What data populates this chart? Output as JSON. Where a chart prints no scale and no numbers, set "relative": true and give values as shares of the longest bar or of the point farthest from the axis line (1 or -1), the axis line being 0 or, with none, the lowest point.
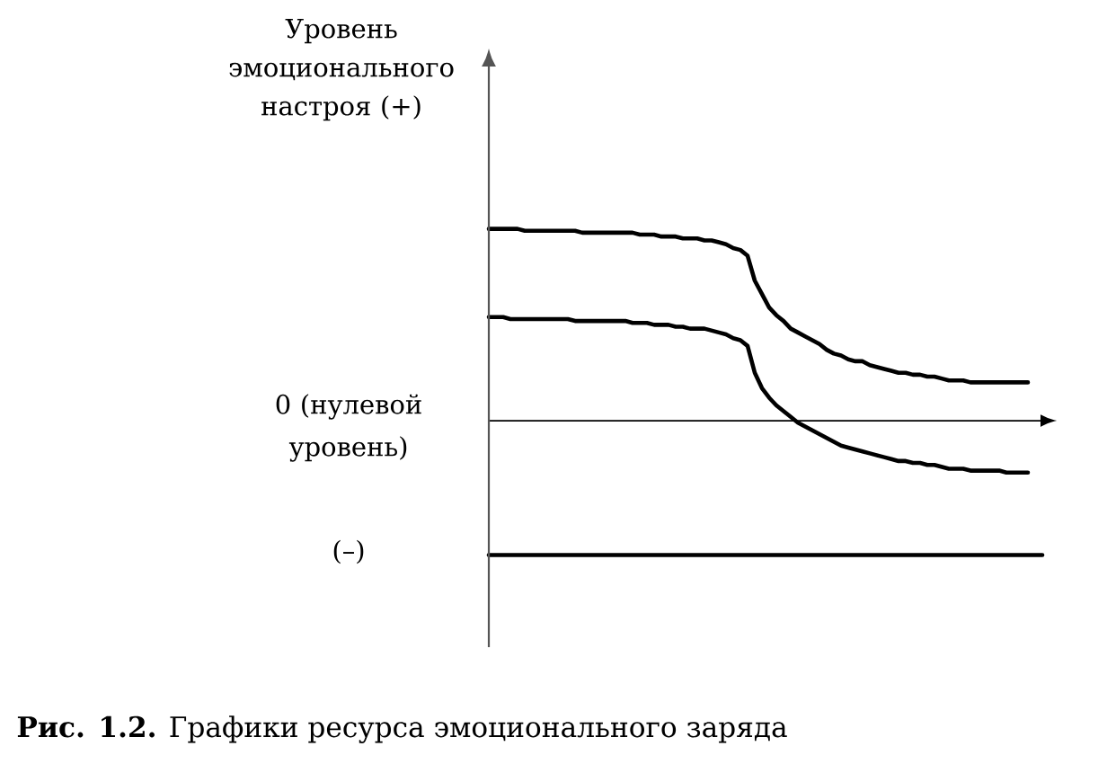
{
  "chart_data": {
    "type": "line",
    "relative": true,
    "marker": "none",
    "ylabel": "Уровень эмоционального настроя (+)",
    "categories": [
      null,
      null,
      null,
      null,
      null,
      null,
      null,
      null,
      null,
      null,
      null,
      null,
      null,
      null,
      null,
      null,
      null,
      null,
      null,
      null,
      null,
      null,
      null,
      null,
      null,
      null,
      null,
      null,
      null,
      null,
      null,
      null,
      null,
      null,
      null,
      null,
      null,
      null,
      null,
      null,
      null,
      null,
      null,
      null,
      null,
      null,
      null,
      null,
      null,
      null,
      null,
      null,
      null,
      null,
      null,
      null,
      null,
      null,
      null,
      null,
      null,
      null,
      null,
      null,
      null,
      null,
      null,
      null,
      null,
      null,
      null,
      null,
      null,
      null,
      null,
      null,
      null,
      null
    ],
    "series": [
      {
        "color": "#000000",
        "values": [
          1.0,
          1.0,
          1.0,
          1.0,
          1.0,
          0.99,
          0.99,
          0.99,
          0.99,
          0.99,
          0.99,
          0.99,
          0.99,
          0.98,
          0.98,
          0.98,
          0.98,
          0.98,
          0.98,
          0.98,
          0.98,
          0.97,
          0.97,
          0.97,
          0.96,
          0.96,
          0.96,
          0.95,
          0.95,
          0.95,
          0.94,
          0.94,
          0.93,
          0.92,
          0.9,
          0.89,
          0.86,
          0.73,
          0.66,
          0.59,
          0.55,
          0.52,
          0.48,
          0.46,
          0.44,
          0.42,
          0.4,
          0.37,
          0.35,
          0.34,
          0.32,
          0.31,
          0.31,
          0.29,
          0.28,
          0.27,
          0.26,
          0.25,
          0.25,
          0.24,
          0.24,
          0.23,
          0.23,
          0.22,
          0.21,
          0.21,
          0.21,
          0.2,
          0.2,
          0.2,
          0.2,
          0.2,
          0.2,
          0.2,
          0.2,
          0.2,
          null,
          null
        ]
      },
      {
        "color": "#000000",
        "values": [
          0.54,
          0.54,
          0.54,
          0.53,
          0.53,
          0.53,
          0.53,
          0.53,
          0.53,
          0.53,
          0.53,
          0.53,
          0.52,
          0.52,
          0.52,
          0.52,
          0.52,
          0.52,
          0.52,
          0.52,
          0.51,
          0.51,
          0.51,
          0.5,
          0.5,
          0.5,
          0.49,
          0.49,
          0.48,
          0.48,
          0.48,
          0.47,
          0.46,
          0.45,
          0.43,
          0.42,
          0.39,
          0.25,
          0.17,
          0.12,
          0.08,
          0.05,
          0.02,
          -0.01,
          -0.03,
          -0.05,
          -0.07,
          -0.09,
          -0.11,
          -0.13,
          -0.14,
          -0.15,
          -0.16,
          -0.17,
          -0.18,
          -0.19,
          -0.2,
          -0.21,
          -0.21,
          -0.22,
          -0.22,
          -0.23,
          -0.23,
          -0.24,
          -0.25,
          -0.25,
          -0.25,
          -0.26,
          -0.26,
          -0.26,
          -0.26,
          -0.26,
          -0.27,
          -0.27,
          -0.27,
          -0.27,
          null,
          null
        ]
      },
      {
        "color": "#000000",
        "values": [
          -0.7,
          -0.7,
          -0.7,
          -0.7,
          -0.7,
          -0.7,
          -0.7,
          -0.7,
          -0.7,
          -0.7,
          -0.7,
          -0.7,
          -0.7,
          -0.7,
          -0.7,
          -0.7,
          -0.7,
          -0.7,
          -0.7,
          -0.7,
          -0.7,
          -0.7,
          -0.7,
          -0.7,
          -0.7,
          -0.7,
          -0.7,
          -0.7,
          -0.7,
          -0.7,
          -0.7,
          -0.7,
          -0.7,
          -0.7,
          -0.7,
          -0.7,
          -0.7,
          -0.7,
          -0.7,
          -0.7,
          -0.7,
          -0.7,
          -0.7,
          -0.7,
          -0.7,
          -0.7,
          -0.7,
          -0.7,
          -0.7,
          -0.7,
          -0.7,
          -0.7,
          -0.7,
          -0.7,
          -0.7,
          -0.7,
          -0.7,
          -0.7,
          -0.7,
          -0.7,
          -0.7,
          -0.7,
          -0.7,
          -0.7,
          -0.7,
          -0.7,
          -0.7,
          -0.7,
          -0.7,
          -0.7,
          -0.7,
          -0.7,
          -0.7,
          -0.7,
          -0.7,
          -0.7,
          -0.7,
          -0.7
        ]
      }
    ],
    "annotations": [
      "0 (нулевой уровень)",
      "(–)",
      "**Рис. 1.2.** Графики ресурса эмоционального заряда"
    ]
  }
}
